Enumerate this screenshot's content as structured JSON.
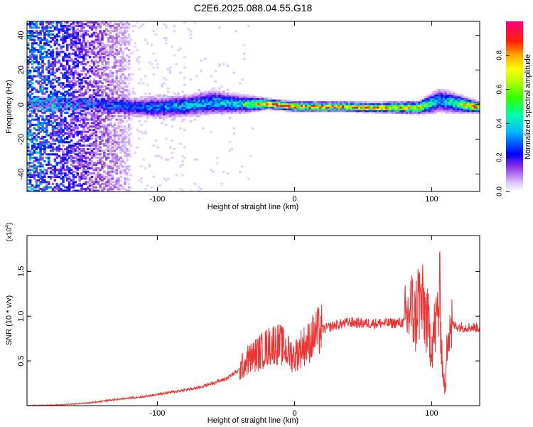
{
  "title": "C2E6.2025.088.04.55.G18",
  "chart_data": [
    {
      "type": "heatmap",
      "xlabel": "Height of straight line (km)",
      "ylabel": "Frequency (Hz)",
      "xlim": [
        -195,
        135
      ],
      "ylim": [
        -50,
        48
      ],
      "xticks": [
        -100,
        0,
        100
      ],
      "yticks": [
        -40,
        -20,
        0,
        20,
        40
      ],
      "colorbar": {
        "label": "Normalized spectral amplitude",
        "range": [
          0,
          1
        ],
        "ticks": [
          0.0,
          0.2,
          0.4,
          0.6,
          0.8
        ],
        "tick_labels": [
          "0.0",
          "0.2",
          "0.4",
          "0.6",
          "0.8"
        ]
      },
      "ridge": [
        {
          "x": -150,
          "f": 0.0,
          "width_hz": 6,
          "amplitude": 0.15
        },
        {
          "x": -120,
          "f": -1.5,
          "width_hz": 6,
          "amplitude": 0.25
        },
        {
          "x": -100,
          "f": -2.0,
          "width_hz": 7,
          "amplitude": 0.3
        },
        {
          "x": -80,
          "f": -1.0,
          "width_hz": 7,
          "amplitude": 0.35
        },
        {
          "x": -60,
          "f": 1.0,
          "width_hz": 8,
          "amplitude": 0.35
        },
        {
          "x": -40,
          "f": 0.0,
          "width_hz": 6,
          "amplitude": 0.4
        },
        {
          "x": -20,
          "f": 0.0,
          "width_hz": 3,
          "amplitude": 0.95
        },
        {
          "x": 0,
          "f": -1.5,
          "width_hz": 3,
          "amplitude": 0.85
        },
        {
          "x": 30,
          "f": -1.5,
          "width_hz": 3,
          "amplitude": 0.85
        },
        {
          "x": 60,
          "f": -2.0,
          "width_hz": 3,
          "amplitude": 0.85
        },
        {
          "x": 90,
          "f": -2.0,
          "width_hz": 4,
          "amplitude": 0.7
        },
        {
          "x": 105,
          "f": 2.0,
          "width_hz": 8,
          "amplitude": 0.3
        },
        {
          "x": 135,
          "f": -2.0,
          "width_hz": 3,
          "amplitude": 0.9
        }
      ]
    },
    {
      "type": "line",
      "xlabel": "Height of straight line (km)",
      "ylabel": "SNR (10 * v/v)",
      "y_multiplier_label": "(x10",
      "y_multiplier_exp": "4",
      "y_multiplier_close": ")",
      "xlim": [
        -195,
        135
      ],
      "ylim": [
        0,
        1.9
      ],
      "xticks": [
        -100,
        0,
        100
      ],
      "yticks": [
        0.5,
        1.0,
        1.5
      ],
      "series": [
        {
          "color": "#ee3333",
          "x": [
            -195,
            -170,
            -150,
            -130,
            -110,
            -90,
            -70,
            -60,
            -50,
            -40,
            -35,
            -30,
            -25,
            -20,
            -15,
            -10,
            -5,
            0,
            5,
            10,
            15,
            20,
            30,
            40,
            50,
            60,
            70,
            80,
            82,
            85,
            88,
            90,
            95,
            100,
            103,
            106,
            108,
            110,
            112,
            115,
            120,
            135
          ],
          "y": [
            0.0,
            0.01,
            0.03,
            0.07,
            0.1,
            0.15,
            0.2,
            0.25,
            0.3,
            0.4,
            0.5,
            0.55,
            0.6,
            0.65,
            0.7,
            0.68,
            0.6,
            0.55,
            0.65,
            0.7,
            0.8,
            0.85,
            0.9,
            0.93,
            0.92,
            0.92,
            0.92,
            0.93,
            0.97,
            1.1,
            0.95,
            1.2,
            1.05,
            0.7,
            0.9,
            1.2,
            0.4,
            0.15,
            1.0,
            0.9,
            0.88,
            0.87
          ]
        }
      ]
    }
  ]
}
